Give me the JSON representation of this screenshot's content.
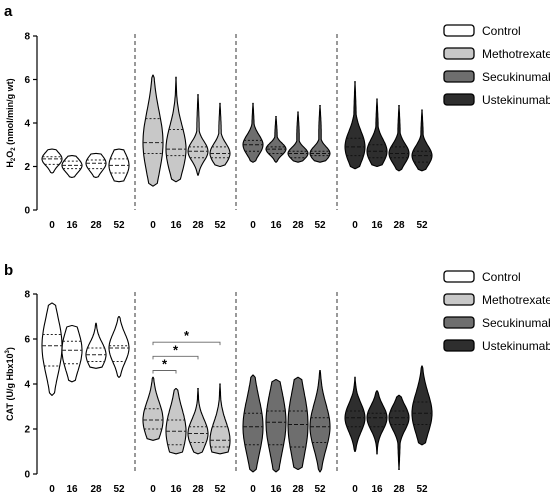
{
  "chart_data": [
    {
      "type": "violin",
      "panel_label": "a",
      "ylabel_main": "H",
      "ylabel_sub1": "2",
      "ylabel_mid": "O",
      "ylabel_sub2": "2",
      "ylabel_rest": " (nmol/min/g wt)",
      "ylim": [
        0,
        8
      ],
      "yticks": [
        "0",
        "2",
        "4",
        "6",
        "8"
      ],
      "x_ticks": [
        "0",
        "16",
        "28",
        "52"
      ],
      "legend": [
        "Control",
        "Methotrexate",
        "Secukinumab",
        "Ustekinumab"
      ],
      "colors": [
        "#ffffff",
        "#c8c8c8",
        "#6e6e6e",
        "#2e2e2e"
      ],
      "groups": [
        {
          "name": "Control",
          "violins": [
            {
              "x": "0",
              "min": 1.7,
              "max": 2.8,
              "median": 2.35,
              "q1": 2.1,
              "q3": 2.45
            },
            {
              "x": "16",
              "min": 1.5,
              "max": 2.5,
              "median": 2.05,
              "q1": 1.9,
              "q3": 2.25
            },
            {
              "x": "28",
              "min": 1.5,
              "max": 2.6,
              "median": 2.15,
              "q1": 1.9,
              "q3": 2.3
            },
            {
              "x": "52",
              "min": 1.3,
              "max": 2.8,
              "median": 2.05,
              "q1": 1.7,
              "q3": 2.35
            }
          ]
        },
        {
          "name": "Methotrexate",
          "violins": [
            {
              "x": "0",
              "min": 1.1,
              "max": 6.2,
              "median": 3.1,
              "q1": 2.6,
              "q3": 4.2
            },
            {
              "x": "16",
              "min": 1.3,
              "max": 6.1,
              "median": 2.8,
              "q1": 2.5,
              "q3": 3.7
            },
            {
              "x": "28",
              "min": 1.6,
              "max": 5.3,
              "median": 2.7,
              "q1": 2.4,
              "q3": 2.9
            },
            {
              "x": "52",
              "min": 2.0,
              "max": 4.9,
              "median": 2.6,
              "q1": 2.4,
              "q3": 2.9
            }
          ]
        },
        {
          "name": "Secukinumab",
          "violins": [
            {
              "x": "0",
              "min": 2.2,
              "max": 4.9,
              "median": 3.0,
              "q1": 2.7,
              "q3": 3.2
            },
            {
              "x": "16",
              "min": 2.2,
              "max": 4.3,
              "median": 2.8,
              "q1": 2.6,
              "q3": 2.9
            },
            {
              "x": "28",
              "min": 2.2,
              "max": 4.5,
              "median": 2.6,
              "q1": 2.4,
              "q3": 2.7
            },
            {
              "x": "52",
              "min": 2.2,
              "max": 4.8,
              "median": 2.6,
              "q1": 2.5,
              "q3": 2.7
            }
          ]
        },
        {
          "name": "Ustekinumab",
          "violins": [
            {
              "x": "0",
              "min": 1.9,
              "max": 5.9,
              "median": 2.9,
              "q1": 2.5,
              "q3": 3.3
            },
            {
              "x": "16",
              "min": 2.0,
              "max": 5.1,
              "median": 2.7,
              "q1": 2.4,
              "q3": 3.0
            },
            {
              "x": "28",
              "min": 1.8,
              "max": 4.8,
              "median": 2.6,
              "q1": 2.4,
              "q3": 2.9
            },
            {
              "x": "52",
              "min": 1.8,
              "max": 4.6,
              "median": 2.5,
              "q1": 2.2,
              "q3": 2.7
            }
          ]
        }
      ]
    },
    {
      "type": "violin",
      "panel_label": "b",
      "ylabel_main": "CAT (U/g Hbx10",
      "ylabel_sup": "3",
      "ylabel_rest": ")",
      "ylim": [
        0,
        8
      ],
      "yticks": [
        "0",
        "2",
        "4",
        "6",
        "8"
      ],
      "x_ticks": [
        "0",
        "16",
        "28",
        "52"
      ],
      "legend": [
        "Control",
        "Methotrexate",
        "Secukinumab",
        "Ustekinumab"
      ],
      "colors": [
        "#ffffff",
        "#c8c8c8",
        "#6e6e6e",
        "#2e2e2e"
      ],
      "significance": [
        {
          "from": "0",
          "to": "16",
          "label": "*"
        },
        {
          "from": "0",
          "to": "28",
          "label": "*"
        },
        {
          "from": "0",
          "to": "52",
          "label": "*"
        }
      ],
      "groups": [
        {
          "name": "Control",
          "violins": [
            {
              "x": "0",
              "min": 3.5,
              "max": 7.6,
              "median": 5.7,
              "q1": 4.8,
              "q3": 6.2
            },
            {
              "x": "16",
              "min": 4.1,
              "max": 6.6,
              "median": 5.5,
              "q1": 4.9,
              "q3": 5.9
            },
            {
              "x": "28",
              "min": 4.7,
              "max": 6.7,
              "median": 5.3,
              "q1": 5.0,
              "q3": 5.6
            },
            {
              "x": "52",
              "min": 4.3,
              "max": 7.0,
              "median": 5.6,
              "q1": 5.0,
              "q3": 5.7
            }
          ]
        },
        {
          "name": "Methotrexate",
          "violins": [
            {
              "x": "0",
              "min": 1.5,
              "max": 4.3,
              "median": 2.4,
              "q1": 2.0,
              "q3": 2.9
            },
            {
              "x": "16",
              "min": 0.9,
              "max": 3.8,
              "median": 1.9,
              "q1": 1.3,
              "q3": 2.4
            },
            {
              "x": "28",
              "min": 0.9,
              "max": 3.8,
              "median": 1.8,
              "q1": 1.4,
              "q3": 2.1
            },
            {
              "x": "52",
              "min": 0.9,
              "max": 4.0,
              "median": 1.5,
              "q1": 1.2,
              "q3": 2.1
            }
          ]
        },
        {
          "name": "Secukinumab",
          "violins": [
            {
              "x": "0",
              "min": 0.1,
              "max": 4.4,
              "median": 2.1,
              "q1": 1.3,
              "q3": 2.7
            },
            {
              "x": "16",
              "min": 0.1,
              "max": 4.2,
              "median": 2.3,
              "q1": 1.3,
              "q3": 2.8
            },
            {
              "x": "28",
              "min": 0.2,
              "max": 4.3,
              "median": 2.2,
              "q1": 1.2,
              "q3": 2.8
            },
            {
              "x": "52",
              "min": 0.1,
              "max": 4.6,
              "median": 2.1,
              "q1": 1.4,
              "q3": 2.5
            }
          ]
        },
        {
          "name": "Ustekinumab",
          "violins": [
            {
              "x": "0",
              "min": 1.0,
              "max": 4.3,
              "median": 2.5,
              "q1": 2.1,
              "q3": 2.8
            },
            {
              "x": "16",
              "min": 0.9,
              "max": 3.7,
              "median": 2.5,
              "q1": 2.1,
              "q3": 2.7
            },
            {
              "x": "28",
              "min": 0.2,
              "max": 3.5,
              "median": 2.5,
              "q1": 2.2,
              "q3": 2.8
            },
            {
              "x": "52",
              "min": 1.3,
              "max": 4.8,
              "median": 2.7,
              "q1": 2.2,
              "q3": 3.2
            }
          ]
        }
      ]
    }
  ]
}
